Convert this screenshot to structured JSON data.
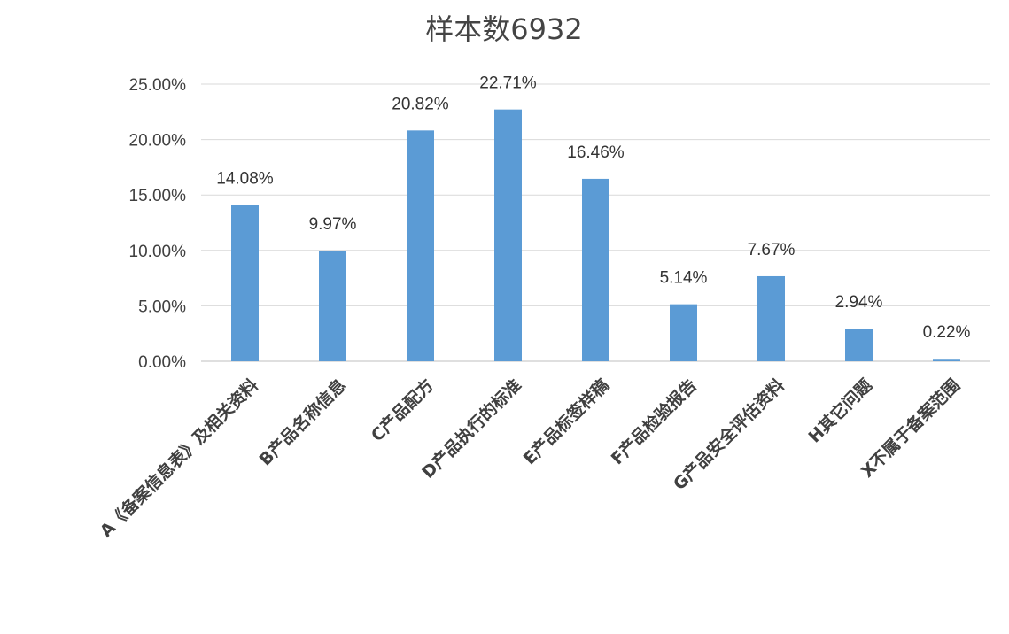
{
  "chart_data": {
    "type": "bar",
    "title": "样本数6932",
    "categories": [
      "A《备案信息表》及相关资料",
      "B产品名称信息",
      "C产品配方",
      "D产品执行的标准",
      "E产品标签样稿",
      "F产品检验报告",
      "G产品安全评估资料",
      "H其它问题",
      "X不属于备案范围"
    ],
    "values": [
      14.08,
      9.97,
      20.82,
      22.71,
      16.46,
      5.14,
      7.67,
      2.94,
      0.22
    ],
    "data_labels": [
      "14.08%",
      "9.97%",
      "20.82%",
      "22.71%",
      "16.46%",
      "5.14%",
      "7.67%",
      "2.94%",
      "0.22%"
    ],
    "y_ticks": [
      0,
      5,
      10,
      15,
      20,
      25
    ],
    "y_tick_labels": [
      "0.00%",
      "5.00%",
      "10.00%",
      "15.00%",
      "20.00%",
      "25.00%"
    ],
    "ylim": [
      0,
      25
    ],
    "xlabel": "",
    "ylabel": "",
    "grid": true,
    "legend": "none",
    "colors": {
      "bar": "#5B9BD5",
      "grid": "#D9D9D9",
      "axis": "#BFBFBF"
    }
  }
}
